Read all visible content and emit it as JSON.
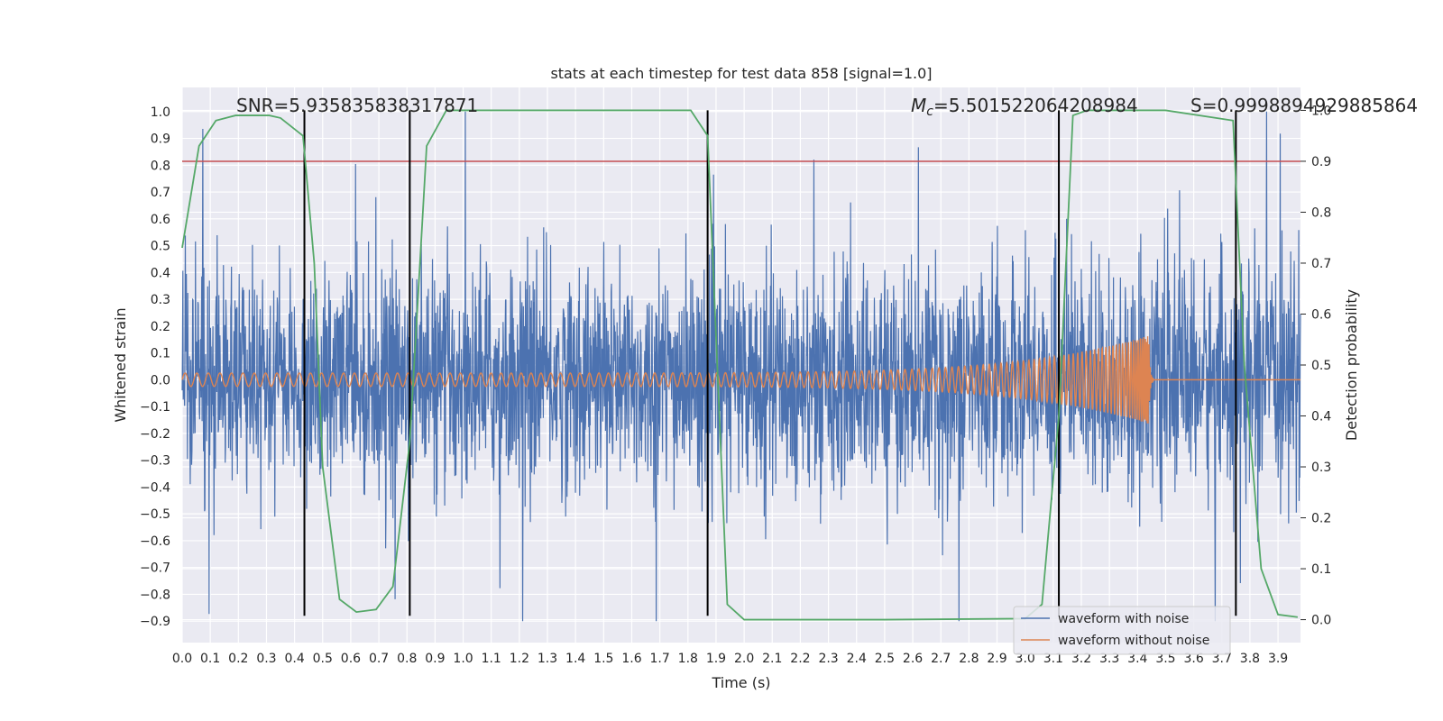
{
  "chart_data": {
    "type": "line",
    "title": "stats at each timestep for test data 858 [signal=1.0]",
    "xlabel": "Time (s)",
    "ylabel": "Whitened strain",
    "y2label": "Detection probability",
    "xlim": [
      0.0,
      3.98
    ],
    "ylim": [
      -0.98,
      1.09
    ],
    "y2lim": [
      -0.045,
      1.045
    ],
    "x_ticks": [
      "0.0",
      "0.1",
      "0.2",
      "0.3",
      "0.4",
      "0.5",
      "0.6",
      "0.7",
      "0.8",
      "0.9",
      "1.0",
      "1.1",
      "1.2",
      "1.3",
      "1.4",
      "1.5",
      "1.6",
      "1.7",
      "1.8",
      "1.9",
      "2.0",
      "2.1",
      "2.2",
      "2.3",
      "2.4",
      "2.5",
      "2.6",
      "2.7",
      "2.8",
      "2.9",
      "3.0",
      "3.1",
      "3.2",
      "3.3",
      "3.4",
      "3.5",
      "3.6",
      "3.7",
      "3.8",
      "3.9"
    ],
    "y_ticks": [
      "1.0",
      "0.9",
      "0.8",
      "0.7",
      "0.6",
      "0.5",
      "0.4",
      "0.3",
      "0.2",
      "0.1",
      "0.0",
      "−0.1",
      "−0.2",
      "−0.3",
      "−0.4",
      "−0.5",
      "−0.6",
      "−0.7",
      "−0.8",
      "−0.9"
    ],
    "y2_ticks": [
      "1.0",
      "0.9",
      "0.8",
      "0.7",
      "0.6",
      "0.5",
      "0.4",
      "0.3",
      "0.2",
      "0.1",
      "0.0"
    ],
    "threshold_y2": 0.9,
    "vertical_lines": [
      0.435,
      0.81,
      1.87,
      3.12,
      3.75
    ],
    "detection_probability": {
      "name": "Detection probability",
      "x": [
        0.0,
        0.06,
        0.12,
        0.19,
        0.25,
        0.31,
        0.35,
        0.43,
        0.47,
        0.5,
        0.56,
        0.62,
        0.69,
        0.75,
        0.81,
        0.87,
        0.94,
        1.0,
        1.5,
        1.75,
        1.81,
        1.87,
        1.94,
        2.0,
        2.06,
        2.5,
        3.0,
        3.06,
        3.12,
        3.17,
        3.22,
        3.5,
        3.74,
        3.78,
        3.84,
        3.9,
        3.97
      ],
      "y": [
        0.73,
        0.93,
        0.98,
        0.99,
        0.99,
        0.99,
        0.985,
        0.95,
        0.7,
        0.3,
        0.04,
        0.015,
        0.02,
        0.065,
        0.35,
        0.93,
        1.0,
        1.0,
        1.0,
        1.0,
        1.0,
        0.95,
        0.03,
        0.0,
        0.0,
        0.0,
        0.002,
        0.03,
        0.4,
        0.99,
        1.0,
        1.0,
        0.98,
        0.5,
        0.1,
        0.01,
        0.005
      ]
    },
    "series": [
      {
        "name": "waveform with noise",
        "color": "#4c72b0",
        "amplitude_range": [
          -0.9,
          1.0
        ]
      },
      {
        "name": "waveform without noise",
        "color": "#dd8452",
        "peak_time": 3.44,
        "peak_amplitude": 0.17
      }
    ],
    "annotations": {
      "snr": "SNR=5.935835838317871",
      "mc_symbol": "M",
      "mc_sub": "c",
      "mc_value": "=5.501522064208984",
      "s": "S=0.9998894929885864"
    },
    "legend": {
      "position": "lower-right",
      "entries": [
        "waveform with noise",
        "waveform without noise"
      ]
    },
    "colors": {
      "background": "#eaeaf2",
      "grid": "#ffffff",
      "noise": "#4c72b0",
      "clean": "#dd8452",
      "probability": "#55a868",
      "threshold": "#c44e52",
      "marker": "#000000"
    }
  }
}
